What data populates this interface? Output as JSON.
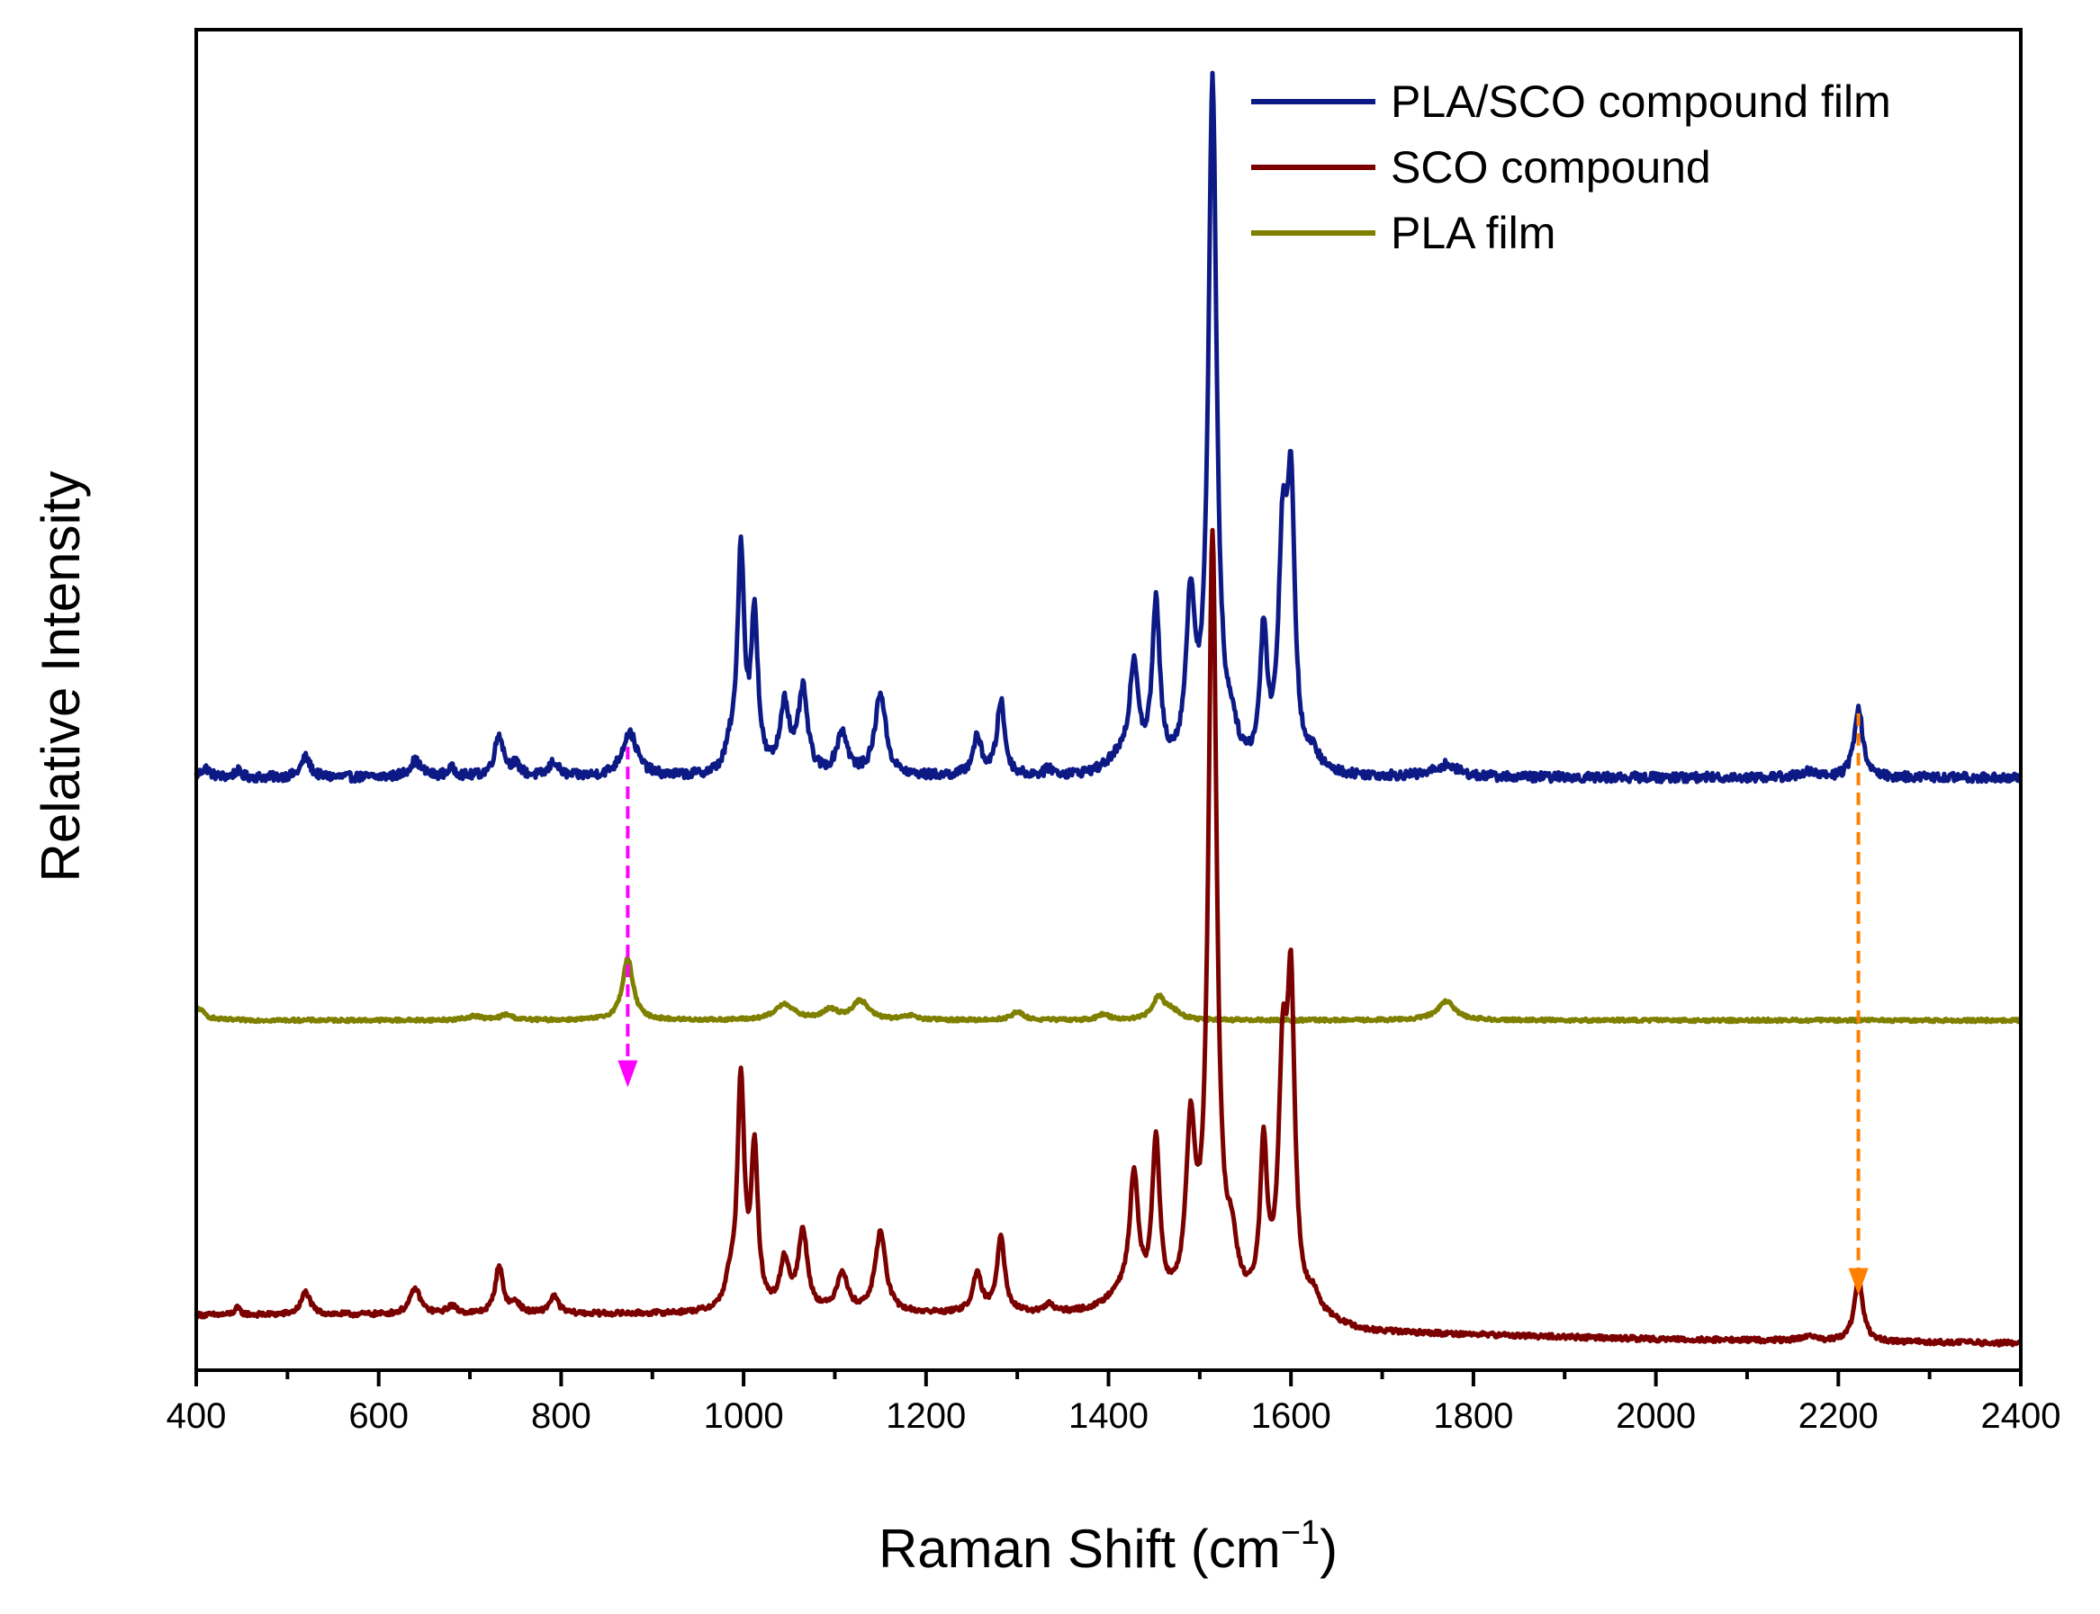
{
  "chart_data": {
    "type": "line",
    "xlabel": "Raman Shift (cm",
    "xlabel_sup": "−1",
    "xlabel_close": ")",
    "ylabel": "Relative Intensity",
    "xlim": [
      400,
      2400
    ],
    "ylim": [
      0,
      100
    ],
    "x_ticks": [
      "400",
      "600",
      "800",
      "1000",
      "1200",
      "1400",
      "1600",
      "1800",
      "2000",
      "2200",
      "2400"
    ],
    "x_tick_values": [
      400,
      600,
      800,
      1000,
      1200,
      1400,
      1600,
      1800,
      2000,
      2200,
      2400
    ],
    "y_ticks_shown": false,
    "legend_position": "top-right",
    "series": [
      {
        "name": "PLA/SCO compound film",
        "color": "#0d1a85",
        "baseline": 44.2,
        "noise": 0.35,
        "peaks": [
          [
            410,
            0.7,
            6
          ],
          [
            445,
            0.5,
            4
          ],
          [
            520,
            1.5,
            6
          ],
          [
            640,
            1.2,
            8
          ],
          [
            680,
            0.6,
            6
          ],
          [
            732,
            3.1,
            6
          ],
          [
            750,
            0.8,
            6
          ],
          [
            792,
            1.1,
            6
          ],
          [
            875,
            3.3,
            10
          ],
          [
            985,
            1.5,
            6
          ],
          [
            997,
            16.5,
            4.5
          ],
          [
            1012,
            11.5,
            4.5
          ],
          [
            1045,
            5.2,
            6
          ],
          [
            1065,
            6.2,
            6
          ],
          [
            1108,
            3.2,
            7
          ],
          [
            1150,
            6.2,
            7
          ],
          [
            1256,
            2.8,
            6
          ],
          [
            1282,
            5.6,
            5
          ],
          [
            1335,
            0.5,
            5
          ],
          [
            1410,
            1.0,
            15
          ],
          [
            1428,
            7.8,
            6
          ],
          [
            1452,
            12.2,
            5
          ],
          [
            1490,
            12.0,
            6
          ],
          [
            1514,
            51.0,
            5.5
          ],
          [
            1535,
            2.2,
            7
          ],
          [
            1570,
            10.0,
            4.5
          ],
          [
            1591,
            16.0,
            5.5
          ],
          [
            1600,
            19.5,
            5
          ],
          [
            1625,
            1.1,
            8
          ],
          [
            1770,
            0.9,
            15
          ],
          [
            2165,
            0.4,
            10
          ],
          [
            2222,
            5.3,
            5.5
          ]
        ]
      },
      {
        "name": "SCO compound",
        "color": "#7b0000",
        "baseline": 2.3,
        "drift": [
          [
            400,
            4.1
          ],
          [
            1000,
            4.2
          ],
          [
            1600,
            4.1
          ],
          [
            1680,
            2.8
          ],
          [
            2000,
            2.3
          ],
          [
            2400,
            2.0
          ]
        ],
        "noise": 0.18,
        "peaks": [
          [
            445,
            0.5,
            4
          ],
          [
            520,
            1.7,
            6
          ],
          [
            640,
            1.9,
            7
          ],
          [
            680,
            0.6,
            6
          ],
          [
            732,
            3.6,
            5
          ],
          [
            750,
            0.8,
            6
          ],
          [
            792,
            1.3,
            6
          ],
          [
            985,
            1.8,
            6
          ],
          [
            997,
            17.0,
            4.5
          ],
          [
            1012,
            11.5,
            4.5
          ],
          [
            1045,
            3.6,
            6
          ],
          [
            1065,
            5.9,
            6
          ],
          [
            1108,
            2.9,
            7
          ],
          [
            1150,
            6.0,
            7
          ],
          [
            1256,
            2.8,
            6
          ],
          [
            1282,
            5.8,
            5
          ],
          [
            1335,
            0.6,
            5
          ],
          [
            1410,
            1.1,
            15
          ],
          [
            1428,
            9.5,
            6
          ],
          [
            1452,
            12.2,
            5
          ],
          [
            1490,
            12.5,
            6
          ],
          [
            1514,
            57.0,
            5.5
          ],
          [
            1535,
            3.5,
            7
          ],
          [
            1570,
            11.5,
            4.5
          ],
          [
            1591,
            16.5,
            5.5
          ],
          [
            1600,
            22.0,
            5
          ],
          [
            1625,
            1.2,
            8
          ],
          [
            2165,
            0.3,
            10
          ],
          [
            2222,
            4.8,
            5.5
          ]
        ]
      },
      {
        "name": "PLA film",
        "color": "#7f7f00",
        "baseline": 26.1,
        "noise": 0.12,
        "peaks": [
          [
            402,
            0.9,
            8
          ],
          [
            740,
            0.4,
            8
          ],
          [
            705,
            0.3,
            10
          ],
          [
            873,
            4.6,
            7
          ],
          [
            1045,
            1.2,
            12
          ],
          [
            1095,
            0.7,
            10
          ],
          [
            1128,
            1.4,
            11
          ],
          [
            1183,
            0.3,
            8
          ],
          [
            1300,
            0.6,
            8
          ],
          [
            1395,
            0.4,
            8
          ],
          [
            1455,
            1.7,
            8
          ],
          [
            1470,
            0.6,
            10
          ],
          [
            1770,
            1.4,
            12
          ]
        ]
      }
    ],
    "annotations": [
      {
        "type": "dashed-arrow",
        "color": "#ff00ff",
        "x": 873,
        "from_y": 46.5,
        "to_y": 21.1
      },
      {
        "type": "dashed-arrow",
        "color": "#ff8000",
        "x": 2222,
        "from_y": 49.0,
        "to_y": 5.6
      }
    ]
  }
}
